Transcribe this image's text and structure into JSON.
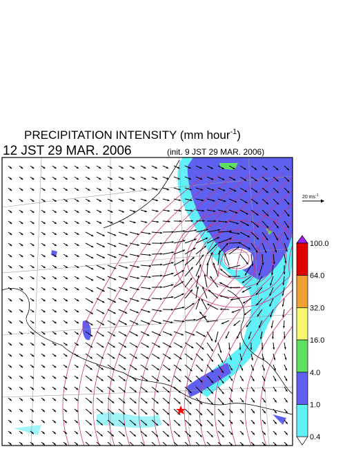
{
  "header": {
    "title": "PRECIPITATION INTENSITY (mm hour",
    "title_sup": "-1",
    "title_end": ")",
    "time": "12 JST 29 MAR. 2006",
    "init": "(init. 9 JST 29 MAR. 2006)"
  },
  "scale": {
    "label": "20 ms",
    "label_sup": "-1"
  },
  "colorbar": {
    "labels": [
      "100.0",
      "64.0",
      "32.0",
      "16.0",
      "4.0",
      "1.0",
      "0.4"
    ],
    "colors": [
      "#a020f0",
      "#e00000",
      "#f0a030",
      "#f8f870",
      "#60e060",
      "#6060f0",
      "#60f0f8",
      "#ffffff"
    ]
  }
}
